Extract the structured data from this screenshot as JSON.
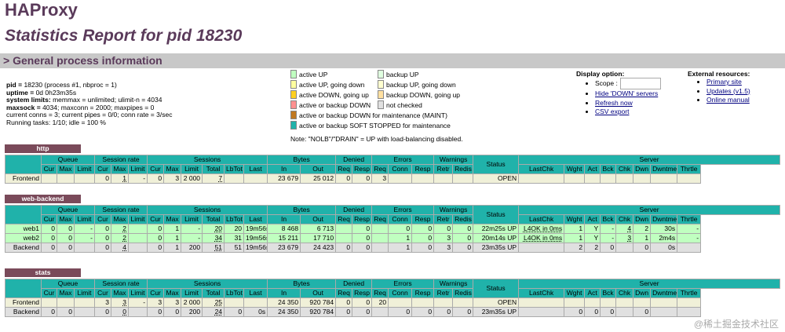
{
  "header": {
    "title": "HAProxy",
    "subtitle": "Statistics Report for pid 18230",
    "section": "> General process information"
  },
  "process_info": [
    {
      "k": "pid = ",
      "v": "18230 (process #1, nbproc = 1)"
    },
    {
      "k": "uptime = ",
      "v": "0d 0h23m35s"
    },
    {
      "k": "system limits:",
      "v": " memmax = unlimited; ulimit-n = 4034"
    },
    {
      "k": "maxsock = ",
      "v": "4034; maxconn = 2000; maxpipes = 0"
    },
    {
      "k": "",
      "v": "current conns = 3; current pipes = 0/0; conn rate = 3/sec"
    },
    {
      "k": "",
      "v": "Running tasks: 1/10; idle = 100 %"
    }
  ],
  "legend": {
    "items": [
      {
        "label": "active UP",
        "color": "#c0ffc0"
      },
      {
        "label": "active UP, going down",
        "color": "#ffffa0"
      },
      {
        "label": "active DOWN, going up",
        "color": "#ffd020"
      },
      {
        "label": "active or backup DOWN",
        "color": "#ff9090"
      },
      {
        "label": "active or backup DOWN for maintenance (MAINT)",
        "color": "#c07820"
      },
      {
        "label": "active or backup SOFT STOPPED for maintenance",
        "color": "#20b2aa"
      },
      {
        "label": "backup UP",
        "color": "#e0ffe0"
      },
      {
        "label": "backup UP, going down",
        "color": "#ffffd0"
      },
      {
        "label": "backup DOWN, going up",
        "color": "#ffe0a0"
      },
      {
        "label": "not checked",
        "color": "#e0e0e0"
      }
    ],
    "note": "Note: \"NOLB\"/\"DRAIN\" = UP with load-balancing disabled."
  },
  "display_option": {
    "title": "Display option:",
    "scope_label": "Scope :",
    "links": [
      "Hide 'DOWN' servers",
      "Refresh now",
      "CSV export"
    ]
  },
  "external": {
    "title": "External resources:",
    "links": [
      "Primary site",
      "Updates (v1.5)",
      "Online manual"
    ]
  },
  "columns": {
    "groups": [
      "Queue",
      "Session rate",
      "Sessions",
      "Bytes",
      "Denied",
      "Errors",
      "Warnings",
      "Server"
    ],
    "sub": [
      "Cur",
      "Max",
      "Limit",
      "Cur",
      "Max",
      "Limit",
      "Cur",
      "Max",
      "Limit",
      "Total",
      "LbTot",
      "Last",
      "In",
      "Out",
      "Req",
      "Resp",
      "Req",
      "Conn",
      "Resp",
      "Retr",
      "Redis",
      "Status",
      "LastChk",
      "Wght",
      "Act",
      "Bck",
      "Chk",
      "Dwn",
      "Dwntme",
      "Thrtle"
    ]
  },
  "proxies": [
    {
      "name": "http",
      "rows": [
        {
          "type": "frontend",
          "cells": [
            "Frontend",
            "",
            "",
            "",
            "0",
            "1",
            "-",
            "0",
            "3",
            "2 000",
            "7",
            "",
            "",
            "23 679",
            "25 012",
            "0",
            "0",
            "3",
            "",
            "",
            "",
            "",
            "OPEN",
            "",
            "",
            "",
            "",
            "",
            "",
            "",
            ""
          ]
        }
      ]
    },
    {
      "name": "web-backend",
      "rows": [
        {
          "type": "up",
          "cells": [
            "web1",
            "0",
            "0",
            "-",
            "0",
            "2",
            "",
            "0",
            "1",
            "-",
            "20",
            "20",
            "19m56s",
            "8 468",
            "6 713",
            "",
            "0",
            "",
            "0",
            "0",
            "0",
            "0",
            "22m25s UP",
            "L4OK in 0ms",
            "1",
            "Y",
            "-",
            "4",
            "2",
            "30s",
            "-"
          ]
        },
        {
          "type": "up",
          "cells": [
            "web2",
            "0",
            "0",
            "-",
            "0",
            "2",
            "",
            "0",
            "1",
            "-",
            "34",
            "31",
            "19m56s",
            "15 211",
            "17 710",
            "",
            "0",
            "",
            "1",
            "0",
            "3",
            "0",
            "20m14s UP",
            "L4OK in 0ms",
            "1",
            "Y",
            "-",
            "3",
            "1",
            "2m4s",
            "-"
          ]
        },
        {
          "type": "backend",
          "cells": [
            "Backend",
            "0",
            "0",
            "",
            "0",
            "4",
            "",
            "0",
            "1",
            "200",
            "51",
            "51",
            "19m56s",
            "23 679",
            "24 423",
            "0",
            "0",
            "",
            "1",
            "0",
            "3",
            "0",
            "23m35s UP",
            "",
            "2",
            "2",
            "0",
            "",
            "0",
            "0s",
            ""
          ]
        }
      ]
    },
    {
      "name": "stats",
      "rows": [
        {
          "type": "frontend",
          "cells": [
            "Frontend",
            "",
            "",
            "",
            "3",
            "3",
            "-",
            "3",
            "3",
            "2 000",
            "25",
            "",
            "",
            "24 350",
            "920 784",
            "0",
            "0",
            "20",
            "",
            "",
            "",
            "",
            "OPEN",
            "",
            "",
            "",
            "",
            "",
            "",
            "",
            ""
          ]
        },
        {
          "type": "backend",
          "cells": [
            "Backend",
            "0",
            "0",
            "",
            "0",
            "0",
            "",
            "0",
            "0",
            "200",
            "24",
            "0",
            "0s",
            "24 350",
            "920 784",
            "0",
            "0",
            "",
            "0",
            "0",
            "0",
            "0",
            "23m35s UP",
            "",
            "0",
            "0",
            "0",
            "",
            "0",
            "",
            ""
          ]
        }
      ]
    }
  ],
  "watermark": "@稀土掘金技术社区"
}
